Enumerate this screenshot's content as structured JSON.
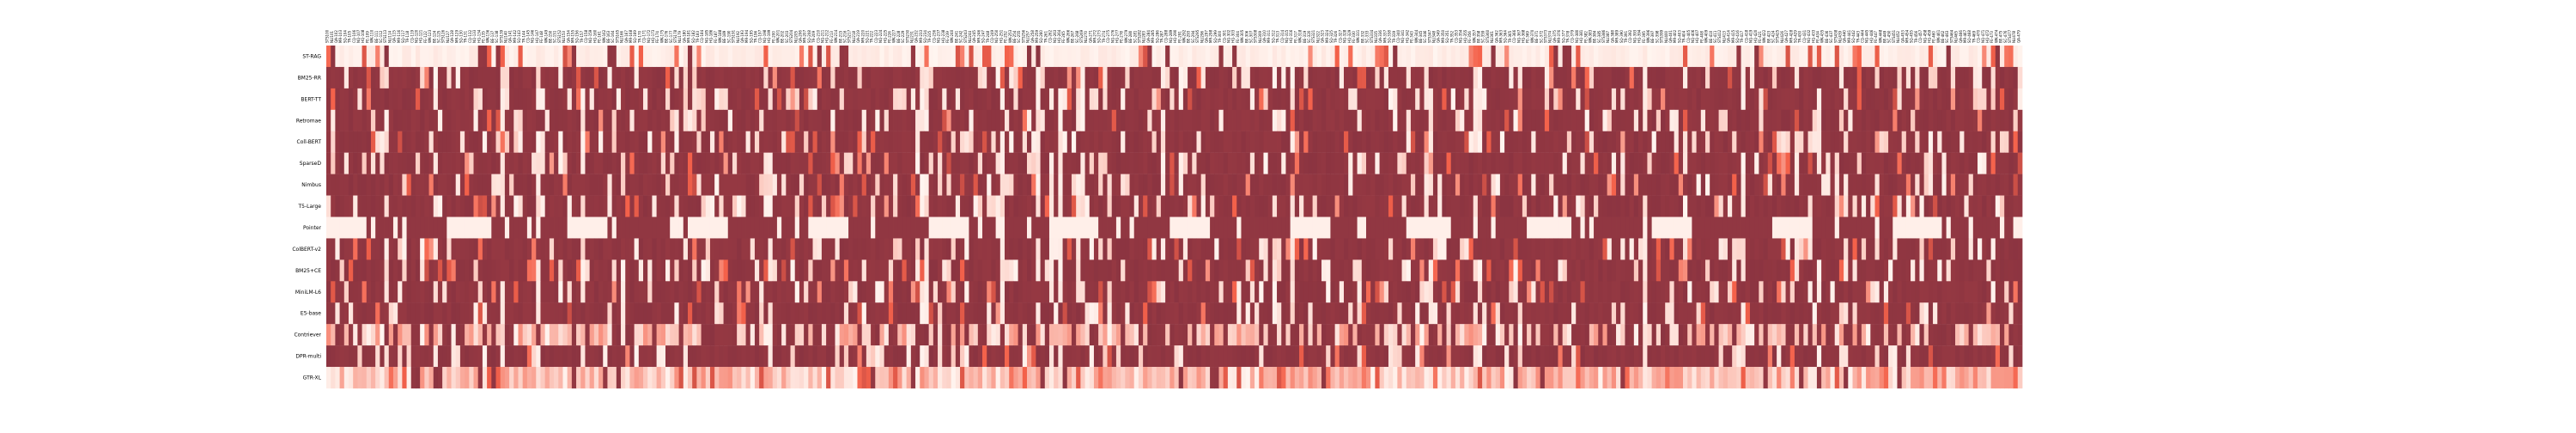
{
  "chart_data": {
    "type": "heatmap",
    "title": "",
    "xlabel": "",
    "ylabel": "",
    "rows": [
      "ST-RAG",
      "BM25-RR",
      "BERT-TT",
      "Retromae",
      "Coll-BERT",
      "SparseD",
      "Nimbus",
      "T5-Large",
      "Pointer",
      "ColBERT-v2",
      "BM25+CE",
      "MiniLM-L6",
      "E5-base",
      "Contriever",
      "DPR-multi",
      "GTR-XL"
    ],
    "color_scale": {
      "min": 0,
      "max": 1,
      "low_color": "#fff5f0",
      "mid_color": "#f4614a",
      "high_color": "#8b3441"
    },
    "row_profiles": [
      {
        "base": 0.07,
        "spread": 0.05
      },
      {
        "base": 0.82,
        "spread": 0.35
      },
      {
        "base": 0.8,
        "spread": 0.4
      },
      {
        "base": 0.83,
        "spread": 0.35
      },
      {
        "base": 0.8,
        "spread": 0.4
      },
      {
        "base": 0.81,
        "spread": 0.38
      },
      {
        "base": 0.79,
        "spread": 0.42
      },
      {
        "base": 0.85,
        "spread": 0.3
      },
      {
        "base": 0.3,
        "spread": 0.7
      },
      {
        "base": 0.82,
        "spread": 0.38
      },
      {
        "base": 0.83,
        "spread": 0.36
      },
      {
        "base": 0.8,
        "spread": 0.4
      },
      {
        "base": 0.86,
        "spread": 0.3
      },
      {
        "base": 0.45,
        "spread": 0.5
      },
      {
        "base": 0.78,
        "spread": 0.4
      },
      {
        "base": 0.18,
        "spread": 0.35
      }
    ],
    "column_count": 380,
    "column_label_prefixes": [
      "STS",
      "NLI",
      "QA-",
      "MR-",
      "SQ-",
      "TR-",
      "CQ-",
      "NQ-",
      "HQ-",
      "FE-",
      "WK-",
      "BE-",
      "SC-"
    ],
    "grid": false,
    "legend": "none",
    "seed": 17
  }
}
